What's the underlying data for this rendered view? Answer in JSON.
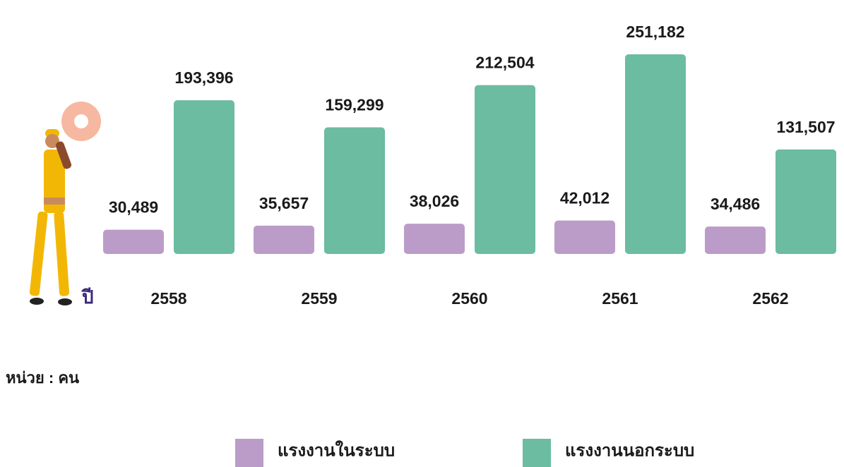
{
  "chart_data": {
    "type": "bar",
    "x_label": "ปี",
    "unit_note": "หน่วย : คน",
    "categories": [
      "2558",
      "2559",
      "2560",
      "2561",
      "2562"
    ],
    "series": [
      {
        "name": "แรงงานในระบบ",
        "color": "#bb9cc8",
        "values": [
          30489,
          35657,
          38026,
          42012,
          34486
        ],
        "value_labels": [
          "30,489",
          "35,657",
          "38,026",
          "42,012",
          "34,486"
        ]
      },
      {
        "name": "แรงงานนอกระบบ",
        "color": "#6bbca0",
        "values": [
          193396,
          159299,
          212504,
          251182,
          131507
        ],
        "value_labels": [
          "193,396",
          "159,299",
          "212,504",
          "251,182",
          "131,507"
        ]
      }
    ]
  }
}
